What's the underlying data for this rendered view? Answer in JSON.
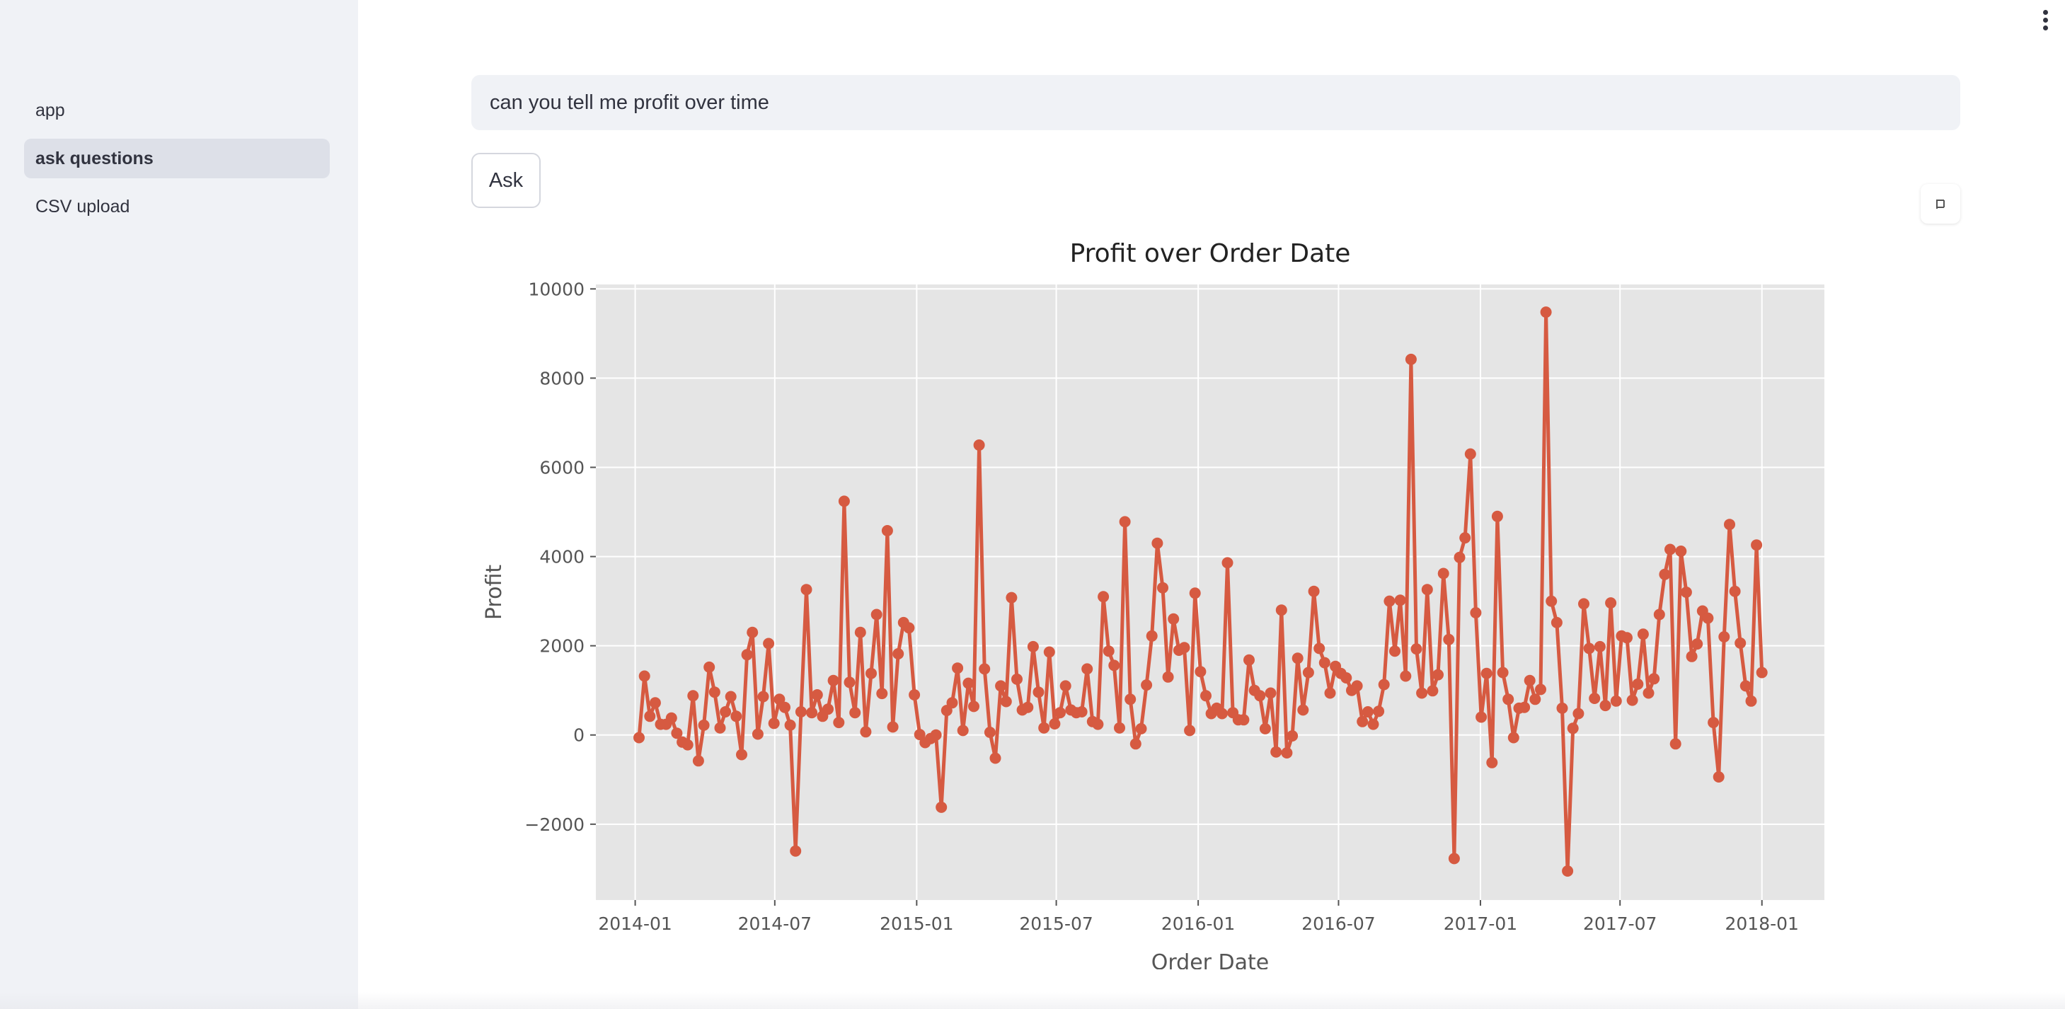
{
  "sidebar": {
    "items": [
      {
        "label": "app",
        "active": false
      },
      {
        "label": "ask questions",
        "active": true
      },
      {
        "label": "CSV upload",
        "active": false
      }
    ]
  },
  "main": {
    "question_value": "can you tell me profit over time",
    "ask_label": "Ask"
  },
  "icons": {
    "menu": "more-vertical-icon",
    "fullscreen": "fullscreen-icon"
  },
  "colors": {
    "line": "#d65a41",
    "plot_bg": "#e5e5e5",
    "sidebar_bg": "#f0f2f6"
  },
  "chart_data": {
    "type": "line",
    "title": "Profit over Order Date",
    "xlabel": "Order Date",
    "ylabel": "Profit",
    "ylim": [
      -3700,
      10100
    ],
    "xlim": [
      "2013-11-11",
      "2018-03-23"
    ],
    "y_ticks": [
      -2000,
      0,
      2000,
      4000,
      6000,
      8000,
      10000
    ],
    "y_tick_labels": [
      "−2000",
      "0",
      "2000",
      "4000",
      "6000",
      "8000",
      "10000"
    ],
    "x_ticks": [
      "2014-01",
      "2014-07",
      "2015-01",
      "2015-07",
      "2016-01",
      "2016-07",
      "2017-01",
      "2017-07",
      "2018-01"
    ],
    "grid": true,
    "series": [
      {
        "dates": [
          "2014-01-06",
          "2014-01-13",
          "2014-01-20",
          "2014-01-27",
          "2014-02-03",
          "2014-02-10",
          "2014-02-17",
          "2014-02-24",
          "2014-03-03",
          "2014-03-10",
          "2014-03-17",
          "2014-03-24",
          "2014-03-31",
          "2014-04-07",
          "2014-04-14",
          "2014-04-21",
          "2014-04-28",
          "2014-05-05",
          "2014-05-12",
          "2014-05-19",
          "2014-05-26",
          "2014-06-02",
          "2014-06-09",
          "2014-06-16",
          "2014-06-23",
          "2014-06-30",
          "2014-07-07",
          "2014-07-14",
          "2014-07-21",
          "2014-07-28",
          "2014-08-04",
          "2014-08-11",
          "2014-08-18",
          "2014-08-25",
          "2014-09-01",
          "2014-09-08",
          "2014-09-15",
          "2014-09-22",
          "2014-09-29",
          "2014-10-06",
          "2014-10-13",
          "2014-10-20",
          "2014-10-27",
          "2014-11-03",
          "2014-11-10",
          "2014-11-17",
          "2014-11-24",
          "2014-12-01",
          "2014-12-08",
          "2014-12-15",
          "2014-12-22",
          "2014-12-29",
          "2015-01-05",
          "2015-01-12",
          "2015-01-19",
          "2015-01-26",
          "2015-02-02",
          "2015-02-09",
          "2015-02-16",
          "2015-02-23",
          "2015-03-02",
          "2015-03-09",
          "2015-03-16",
          "2015-03-23",
          "2015-03-30",
          "2015-04-06",
          "2015-04-13",
          "2015-04-20",
          "2015-04-27",
          "2015-05-04",
          "2015-05-11",
          "2015-05-18",
          "2015-05-25",
          "2015-06-01",
          "2015-06-08",
          "2015-06-15",
          "2015-06-22",
          "2015-06-29",
          "2015-07-06",
          "2015-07-13",
          "2015-07-20",
          "2015-07-27",
          "2015-08-03",
          "2015-08-10",
          "2015-08-17",
          "2015-08-24",
          "2015-08-31",
          "2015-09-07",
          "2015-09-14",
          "2015-09-21",
          "2015-09-28",
          "2015-10-05",
          "2015-10-12",
          "2015-10-19",
          "2015-10-26",
          "2015-11-02",
          "2015-11-09",
          "2015-11-16",
          "2015-11-23",
          "2015-11-30",
          "2015-12-07",
          "2015-12-14",
          "2015-12-21",
          "2015-12-28",
          "2016-01-04",
          "2016-01-11",
          "2016-01-18",
          "2016-01-25",
          "2016-02-01",
          "2016-02-08",
          "2016-02-15",
          "2016-02-22",
          "2016-02-29",
          "2016-03-07",
          "2016-03-14",
          "2016-03-21",
          "2016-03-28",
          "2016-04-04",
          "2016-04-11",
          "2016-04-18",
          "2016-04-25",
          "2016-05-02",
          "2016-05-09",
          "2016-05-16",
          "2016-05-23",
          "2016-05-30",
          "2016-06-06",
          "2016-06-13",
          "2016-06-20",
          "2016-06-27",
          "2016-07-04",
          "2016-07-11",
          "2016-07-18",
          "2016-07-25",
          "2016-08-01",
          "2016-08-08",
          "2016-08-15",
          "2016-08-22",
          "2016-08-29",
          "2016-09-05",
          "2016-09-12",
          "2016-09-19",
          "2016-09-26",
          "2016-10-03",
          "2016-10-10",
          "2016-10-17",
          "2016-10-24",
          "2016-10-31",
          "2016-11-07",
          "2016-11-14",
          "2016-11-21",
          "2016-11-28",
          "2016-12-05",
          "2016-12-12",
          "2016-12-19",
          "2016-12-26",
          "2017-01-02",
          "2017-01-09",
          "2017-01-16",
          "2017-01-23",
          "2017-01-30",
          "2017-02-06",
          "2017-02-13",
          "2017-02-20",
          "2017-02-27",
          "2017-03-06",
          "2017-03-13",
          "2017-03-20",
          "2017-03-27",
          "2017-04-03",
          "2017-04-10",
          "2017-04-17",
          "2017-04-24",
          "2017-05-01",
          "2017-05-08",
          "2017-05-15",
          "2017-05-22",
          "2017-05-29",
          "2017-06-05",
          "2017-06-12",
          "2017-06-19",
          "2017-06-26",
          "2017-07-03",
          "2017-07-10",
          "2017-07-17",
          "2017-07-24",
          "2017-07-31",
          "2017-08-07",
          "2017-08-14",
          "2017-08-21",
          "2017-08-28",
          "2017-09-04",
          "2017-09-11",
          "2017-09-18",
          "2017-09-25",
          "2017-10-02",
          "2017-10-09",
          "2017-10-16",
          "2017-10-23",
          "2017-10-30",
          "2017-11-06",
          "2017-11-13",
          "2017-11-20",
          "2017-11-27",
          "2017-12-04",
          "2017-12-11",
          "2017-12-18",
          "2017-12-25",
          "2018-01-01"
        ],
        "values": [
          -60,
          1320,
          420,
          720,
          240,
          240,
          380,
          40,
          -160,
          -220,
          880,
          -580,
          220,
          1520,
          960,
          160,
          520,
          860,
          420,
          -440,
          1800,
          2300,
          20,
          860,
          2050,
          260,
          800,
          620,
          220,
          -2600,
          520,
          3260,
          500,
          900,
          420,
          580,
          1220,
          280,
          5240,
          1180,
          500,
          2300,
          70,
          1380,
          2700,
          930,
          4580,
          180,
          1820,
          2520,
          2400,
          900,
          10,
          -170,
          -80,
          0,
          -1620,
          550,
          720,
          1500,
          100,
          1160,
          640,
          6500,
          1480,
          60,
          -520,
          1100,
          750,
          3080,
          1250,
          560,
          620,
          1980,
          960,
          160,
          1860,
          250,
          500,
          1100,
          560,
          500,
          520,
          1480,
          300,
          240,
          3100,
          1880,
          1560,
          160,
          4780,
          800,
          -200,
          140,
          1120,
          2220,
          4300,
          3300,
          1300,
          2600,
          1900,
          1960,
          100,
          3180,
          1420,
          880,
          480,
          600,
          480,
          3860,
          500,
          340,
          340,
          1680,
          1000,
          880,
          140,
          940,
          -380,
          2800,
          -400,
          -20,
          1720,
          560,
          1400,
          3220,
          1940,
          1620,
          940,
          1540,
          1380,
          1280,
          1000,
          1100,
          300,
          520,
          240,
          530,
          1130,
          3000,
          1880,
          3020,
          1320,
          8420,
          1930,
          940,
          3260,
          990,
          1350,
          3620,
          2140,
          -2770,
          3980,
          4420,
          6300,
          2740,
          400,
          1380,
          -620,
          4900,
          1400,
          800,
          -60,
          600,
          620,
          1220,
          800,
          1020,
          9480,
          3000,
          2520,
          600,
          -3050,
          150,
          480,
          2940,
          1940,
          820,
          1980,
          660,
          2960,
          760,
          2220,
          2180,
          780,
          1140,
          2260,
          940,
          1260,
          2700,
          3600,
          4160,
          -200,
          4120,
          3200,
          1760,
          2040,
          2780,
          2620,
          280,
          -940,
          2200,
          4720,
          3220,
          2060,
          1100,
          760,
          4260,
          1400
        ]
      }
    ]
  }
}
